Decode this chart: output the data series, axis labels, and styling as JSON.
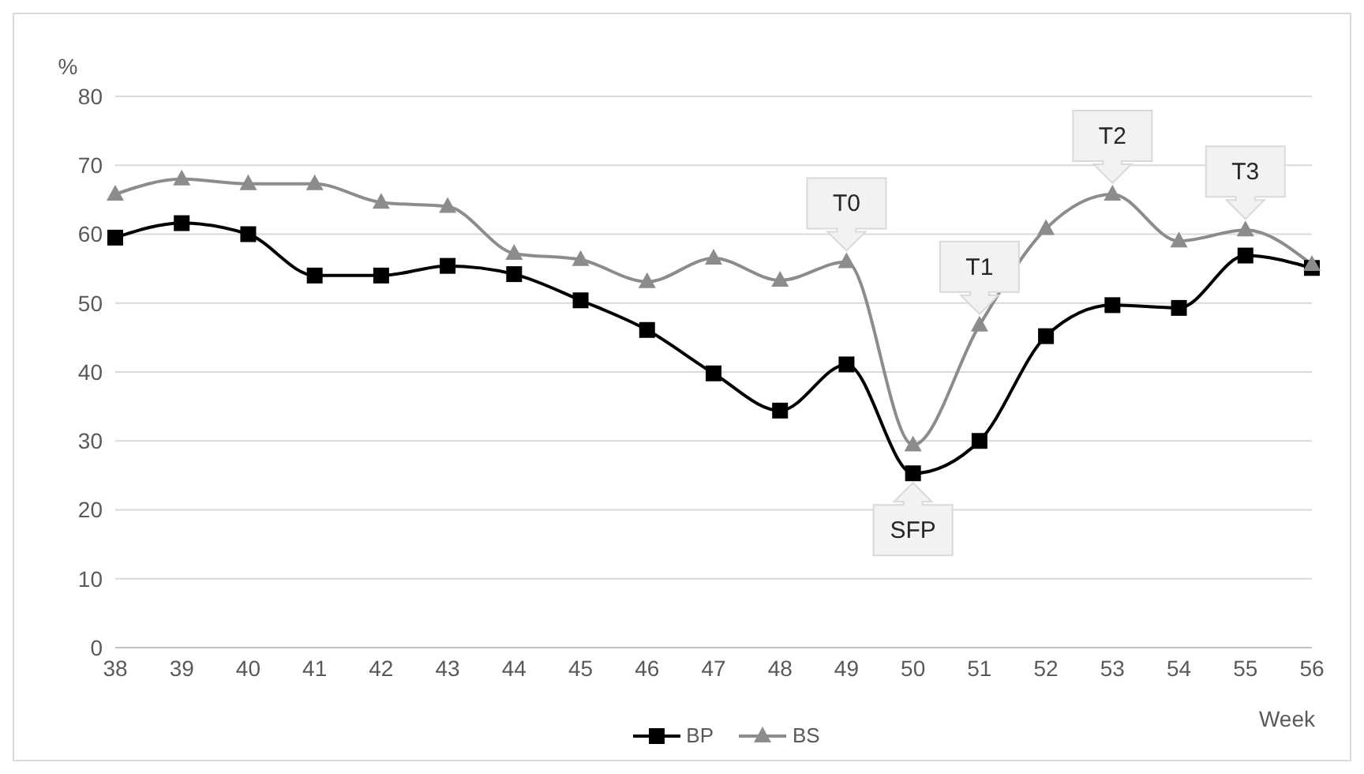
{
  "chart_data": {
    "type": "line",
    "xlabel": "Week",
    "ylabel": "%",
    "categories": [
      "38",
      "39",
      "40",
      "41",
      "42",
      "43",
      "44",
      "45",
      "46",
      "47",
      "48",
      "49",
      "50",
      "51",
      "52",
      "53",
      "54",
      "55",
      "56"
    ],
    "series": [
      {
        "name": "BP",
        "color": "#000000",
        "marker": "square",
        "values": [
          59.5,
          61.6,
          60,
          54,
          54,
          55.4,
          54.2,
          50.4,
          46.1,
          39.8,
          34.4,
          41.1,
          25.3,
          30,
          45.2,
          49.7,
          49.3,
          56.9,
          55.1
        ]
      },
      {
        "name": "BS",
        "color": "#8c8c8c",
        "marker": "triangle",
        "values": [
          65.8,
          68,
          67.3,
          67.3,
          64.6,
          64,
          57.2,
          56.3,
          53.1,
          56.5,
          53.3,
          56,
          29.4,
          46.8,
          60.8,
          65.8,
          59,
          60.6,
          55.6
        ]
      }
    ],
    "ylim": [
      0,
      80
    ],
    "yticks": [
      0,
      10,
      20,
      30,
      40,
      50,
      60,
      70,
      80
    ],
    "grid": "y",
    "legend": "bottom",
    "annotations": [
      {
        "text": "T0",
        "x": "49",
        "y": 56
      },
      {
        "text": "T1",
        "x": "51",
        "y": 46.8
      },
      {
        "text": "T2",
        "x": "53",
        "y": 65.8
      },
      {
        "text": "T3",
        "x": "55",
        "y": 60.6
      },
      {
        "text": "SFP",
        "x": "50",
        "y": 25.3
      }
    ]
  }
}
